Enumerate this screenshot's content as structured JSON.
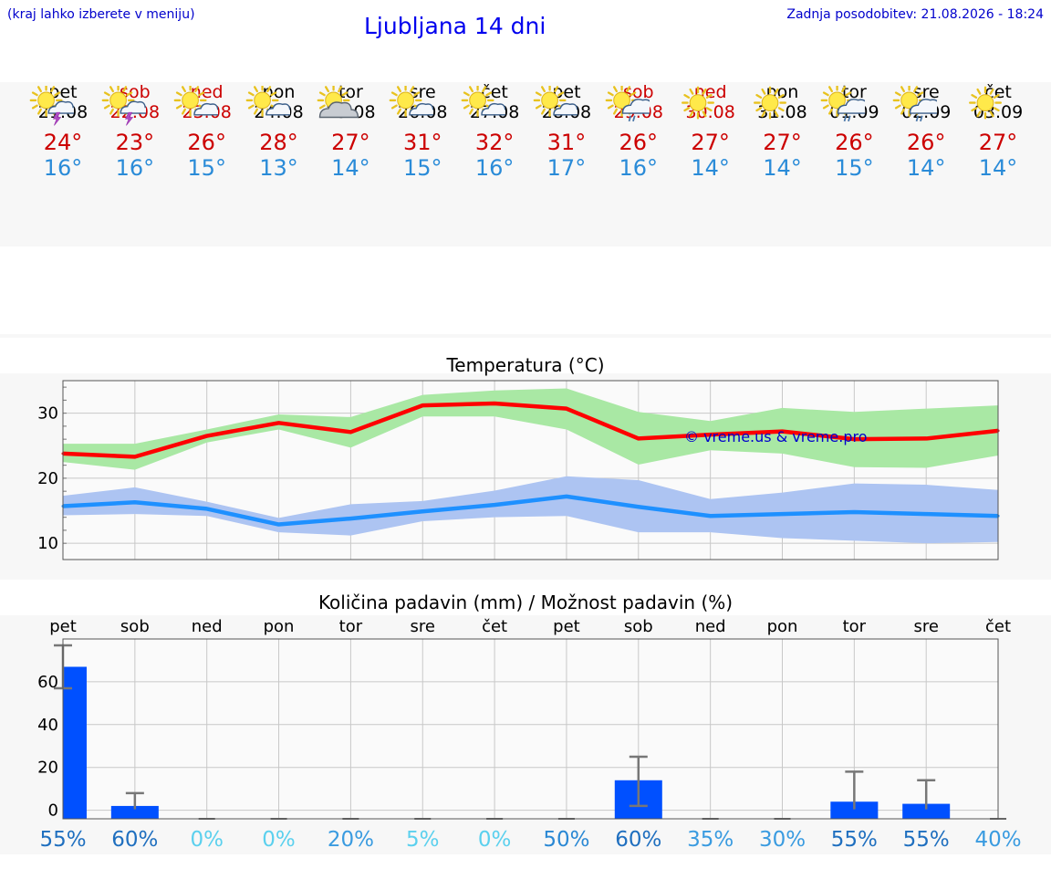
{
  "header": {
    "hint": "(kraj lahko izberete v meniju)",
    "title": "Ljubljana 14 dni",
    "updated": "Zadnja posodobitev: 21.08.2026 - 18:24"
  },
  "days": [
    {
      "name": "pet",
      "date": "21.08",
      "weekend": false,
      "icon": "sun-cloud-thunder-icon",
      "tmax": "24°",
      "tmin": "16°"
    },
    {
      "name": "sob",
      "date": "22.08",
      "weekend": true,
      "icon": "sun-cloud-thunder-icon",
      "tmax": "23°",
      "tmin": "16°"
    },
    {
      "name": "ned",
      "date": "23.08",
      "weekend": true,
      "icon": "sun-small-cloud-icon",
      "tmax": "26°",
      "tmin": "15°"
    },
    {
      "name": "pon",
      "date": "24.08",
      "weekend": false,
      "icon": "sun-small-cloud-icon",
      "tmax": "28°",
      "tmin": "13°"
    },
    {
      "name": "tor",
      "date": "25.08",
      "weekend": false,
      "icon": "sun-grey-cloud-icon",
      "tmax": "27°",
      "tmin": "14°"
    },
    {
      "name": "sre",
      "date": "26.08",
      "weekend": false,
      "icon": "sun-small-cloud-icon",
      "tmax": "31°",
      "tmin": "15°"
    },
    {
      "name": "čet",
      "date": "27.08",
      "weekend": false,
      "icon": "sun-small-cloud-icon",
      "tmax": "32°",
      "tmin": "16°"
    },
    {
      "name": "pet",
      "date": "28.08",
      "weekend": false,
      "icon": "sun-small-cloud-icon",
      "tmax": "31°",
      "tmin": "17°"
    },
    {
      "name": "sob",
      "date": "29.08",
      "weekend": true,
      "icon": "sun-cloud-rain-icon",
      "tmax": "26°",
      "tmin": "16°"
    },
    {
      "name": "ned",
      "date": "30.08",
      "weekend": true,
      "icon": "sun-icon",
      "tmax": "27°",
      "tmin": "14°"
    },
    {
      "name": "pon",
      "date": "31.08",
      "weekend": false,
      "icon": "sun-icon",
      "tmax": "27°",
      "tmin": "14°"
    },
    {
      "name": "tor",
      "date": "01.09",
      "weekend": false,
      "icon": "sun-cloud-rain-icon",
      "tmax": "26°",
      "tmin": "15°"
    },
    {
      "name": "sre",
      "date": "02.09",
      "weekend": false,
      "icon": "sun-cloud-rain-icon",
      "tmax": "26°",
      "tmin": "14°"
    },
    {
      "name": "čet",
      "date": "03.09",
      "weekend": false,
      "icon": "sun-icon",
      "tmax": "27°",
      "tmin": "14°"
    }
  ],
  "chart_data": [
    {
      "type": "line",
      "title": "Temperatura (°C)",
      "watermark": "© vreme.us & vreme.pro",
      "ylim": [
        7.5,
        35
      ],
      "yticks": [
        10,
        20,
        30
      ],
      "grid": true,
      "x": [
        0,
        1,
        2,
        3,
        4,
        5,
        6,
        7,
        8,
        9,
        10,
        11,
        12,
        13
      ],
      "series": [
        {
          "key": "tmax",
          "color": "#ff0000",
          "band_color": "#a9e8a4",
          "values": [
            23.8,
            23.3,
            26.5,
            28.5,
            27.1,
            31.2,
            31.5,
            30.7,
            26.1,
            26.7,
            27.2,
            26.0,
            26.1,
            27.3
          ],
          "band_low": [
            22.5,
            21.3,
            25.5,
            27.5,
            24.7,
            29.5,
            29.5,
            27.5,
            22.1,
            24.3,
            23.8,
            21.7,
            21.6,
            23.5
          ],
          "band_high": [
            25.3,
            25.3,
            27.5,
            29.8,
            29.4,
            32.8,
            33.5,
            33.8,
            30.2,
            28.8,
            30.8,
            30.2,
            30.7,
            31.2
          ]
        },
        {
          "key": "tmin",
          "color": "#1e90ff",
          "band_color": "#adc4f2",
          "values": [
            15.7,
            16.3,
            15.3,
            12.9,
            13.8,
            14.9,
            15.9,
            17.2,
            15.6,
            14.2,
            14.5,
            14.8,
            14.5,
            14.2
          ],
          "band_low": [
            14.3,
            14.5,
            14.2,
            11.7,
            11.2,
            13.4,
            14.0,
            14.2,
            11.7,
            11.7,
            10.8,
            10.4,
            10.0,
            10.2
          ],
          "band_high": [
            17.3,
            18.6,
            16.4,
            13.9,
            16.0,
            16.5,
            18.1,
            20.3,
            19.7,
            16.8,
            17.8,
            19.2,
            19.0,
            18.2
          ]
        }
      ]
    },
    {
      "type": "bar",
      "title": "Količina padavin (mm) / Možnost padavin (%)",
      "categories": [
        "pet",
        "sob",
        "ned",
        "pon",
        "tor",
        "sre",
        "čet",
        "pet",
        "sob",
        "ned",
        "pon",
        "tor",
        "sre",
        "čet"
      ],
      "ylim": [
        -4,
        80
      ],
      "yticks": [
        0,
        20,
        40,
        60
      ],
      "grid": true,
      "bar_color": "#0050ff",
      "values": [
        67,
        2,
        0,
        0,
        0,
        0,
        0,
        0,
        14,
        0,
        0,
        4,
        3,
        0
      ],
      "err_low": [
        57,
        0,
        0,
        0,
        0,
        0,
        0,
        0,
        2,
        0,
        0,
        0,
        0,
        0
      ],
      "err_high": [
        77,
        8,
        0,
        0,
        0,
        0,
        0,
        0,
        25,
        0,
        0,
        18,
        14,
        0
      ],
      "chance": [
        "55%",
        "60%",
        "0%",
        "0%",
        "20%",
        "5%",
        "0%",
        "50%",
        "60%",
        "35%",
        "30%",
        "55%",
        "55%",
        "40%"
      ],
      "chance_colors": [
        "#1f6fbf",
        "#1f6fbf",
        "#5bd0ee",
        "#5bd0ee",
        "#3a9be0",
        "#5bd0ee",
        "#5bd0ee",
        "#2a88d4",
        "#1f6fbf",
        "#3a9be0",
        "#3a9be0",
        "#1f6fbf",
        "#1f6fbf",
        "#3a9be0"
      ]
    }
  ]
}
